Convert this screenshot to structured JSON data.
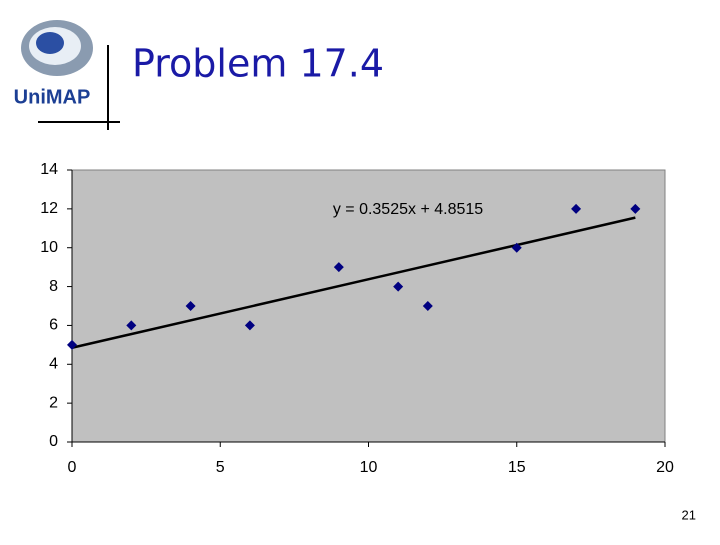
{
  "slide": {
    "title": "Problem 17.4",
    "logo_text": "UniMAP",
    "page_number": "21"
  },
  "chart_data": {
    "type": "scatter",
    "x": [
      0,
      2,
      4,
      6,
      9,
      11,
      12,
      15,
      17,
      19
    ],
    "series": [
      {
        "color": "#000080",
        "values": [
          5,
          6,
          7,
          6,
          9,
          8,
          7,
          10,
          12,
          12
        ]
      }
    ],
    "trendline": {
      "slope": 0.3525,
      "intercept": 4.8515,
      "label": "y = 0.3525x + 4.8515"
    },
    "xlim": [
      0,
      20
    ],
    "xticks": [
      0,
      5,
      10,
      15,
      20
    ],
    "ylim": [
      0,
      14
    ],
    "yticks": [
      0,
      2,
      4,
      6,
      8,
      10,
      12,
      14
    ],
    "grid": false
  }
}
